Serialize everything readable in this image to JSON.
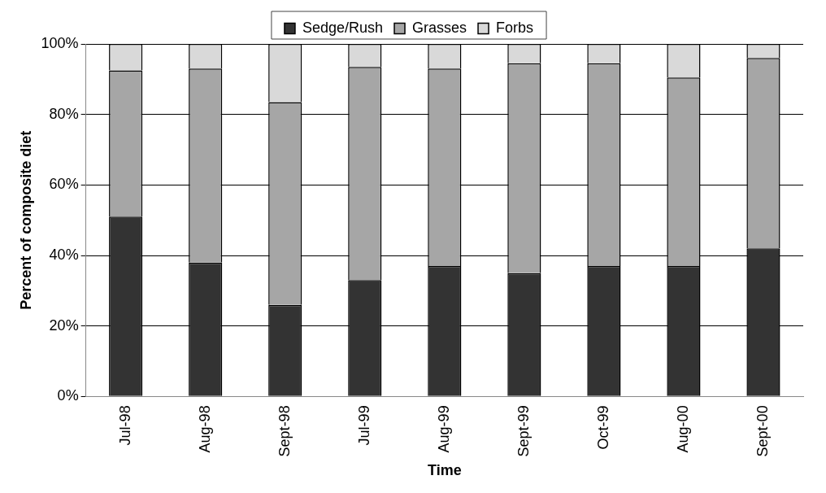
{
  "chart_data": {
    "type": "bar",
    "stacked": true,
    "xlabel": "Time",
    "ylabel": "Percent of composite diet",
    "categories": [
      "Jul-98",
      "Aug-98",
      "Sept-98",
      "Jul-99",
      "Aug-99",
      "Sept-99",
      "Oct-99",
      "Aug-00",
      "Sept-00"
    ],
    "series": [
      {
        "name": "Sedge/Rush",
        "color": "#333333",
        "values": [
          51,
          38,
          26,
          33,
          37,
          35,
          37,
          37,
          42
        ]
      },
      {
        "name": "Grasses",
        "color": "#a6a6a6",
        "values": [
          41.5,
          55,
          57.5,
          60.5,
          56,
          59.5,
          57.5,
          53.5,
          54
        ]
      },
      {
        "name": "Forbs",
        "color": "#d9d9d9",
        "values": [
          7.5,
          7,
          16.5,
          6.5,
          7,
          5.5,
          5.5,
          9.5,
          4
        ]
      }
    ],
    "ylim": [
      0,
      100
    ],
    "yticks": [
      {
        "value": 0,
        "label": "0%"
      },
      {
        "value": 20,
        "label": "20%"
      },
      {
        "value": 40,
        "label": "40%"
      },
      {
        "value": 60,
        "label": "60%"
      },
      {
        "value": 80,
        "label": "80%"
      },
      {
        "value": 100,
        "label": "100%"
      }
    ],
    "grid": "y",
    "legend": "top"
  }
}
